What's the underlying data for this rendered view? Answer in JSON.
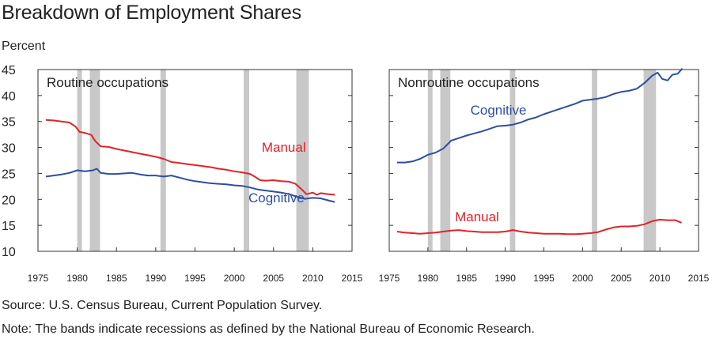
{
  "title": "Breakdown of Employment Shares",
  "y_unit": "Percent",
  "source": "Source: U.S. Census Bureau, Current Population Survey.",
  "note": "Note: The bands indicate recessions as defined by the National Bureau of Economic Research.",
  "colors": {
    "cognitive": "#2e4ea3",
    "manual": "#e0232a",
    "recession": "#c8c8c8"
  },
  "chart_data": [
    {
      "type": "line",
      "title": "Routine occupations",
      "xlim": [
        1975,
        2015
      ],
      "ylim": [
        10,
        45
      ],
      "x_ticks": [
        1975,
        1980,
        1985,
        1990,
        1995,
        2000,
        2005,
        2010,
        2015
      ],
      "y_ticks": [
        10,
        15,
        20,
        25,
        30,
        35,
        40,
        45
      ],
      "recessions": [
        [
          1980.0,
          1980.6
        ],
        [
          1981.6,
          1982.9
        ],
        [
          1990.6,
          1991.3
        ],
        [
          2001.2,
          2001.9
        ],
        [
          2007.9,
          2009.5
        ]
      ],
      "series": [
        {
          "name": "Manual",
          "color": "#e0232a",
          "points": [
            [
              1976,
              35.3
            ],
            [
              1977,
              35.2
            ],
            [
              1978,
              35.0
            ],
            [
              1979,
              34.8
            ],
            [
              1979.8,
              34.0
            ],
            [
              1980.3,
              33.0
            ],
            [
              1981,
              32.8
            ],
            [
              1981.8,
              32.4
            ],
            [
              1982.3,
              31.2
            ],
            [
              1983,
              30.2
            ],
            [
              1984,
              30.1
            ],
            [
              1985,
              29.7
            ],
            [
              1986,
              29.4
            ],
            [
              1987,
              29.1
            ],
            [
              1988,
              28.8
            ],
            [
              1989,
              28.5
            ],
            [
              1990,
              28.2
            ],
            [
              1991,
              27.8
            ],
            [
              1992,
              27.2
            ],
            [
              1993,
              27.0
            ],
            [
              1994,
              26.8
            ],
            [
              1995,
              26.6
            ],
            [
              1996,
              26.4
            ],
            [
              1997,
              26.2
            ],
            [
              1998,
              25.9
            ],
            [
              1999,
              25.7
            ],
            [
              2000,
              25.4
            ],
            [
              2001,
              25.2
            ],
            [
              2002,
              24.9
            ],
            [
              2002.6,
              24.4
            ],
            [
              2003.3,
              23.7
            ],
            [
              2004,
              23.6
            ],
            [
              2005,
              23.7
            ],
            [
              2006,
              23.5
            ],
            [
              2007,
              23.4
            ],
            [
              2007.8,
              23.0
            ],
            [
              2008.6,
              21.9
            ],
            [
              2009.2,
              21.0
            ],
            [
              2010,
              21.3
            ],
            [
              2010.5,
              20.9
            ],
            [
              2011,
              21.2
            ],
            [
              2012,
              21.0
            ],
            [
              2012.8,
              20.9
            ]
          ]
        },
        {
          "name": "Cognitive",
          "color": "#2e4ea3",
          "points": [
            [
              1976,
              24.4
            ],
            [
              1977,
              24.6
            ],
            [
              1978,
              24.8
            ],
            [
              1979,
              25.1
            ],
            [
              1980,
              25.6
            ],
            [
              1981,
              25.4
            ],
            [
              1982,
              25.6
            ],
            [
              1982.5,
              25.9
            ],
            [
              1983,
              25.1
            ],
            [
              1984,
              24.9
            ],
            [
              1985,
              24.9
            ],
            [
              1986,
              25.0
            ],
            [
              1987,
              25.1
            ],
            [
              1988,
              24.8
            ],
            [
              1989,
              24.6
            ],
            [
              1990,
              24.6
            ],
            [
              1991,
              24.4
            ],
            [
              1992,
              24.6
            ],
            [
              1993,
              24.2
            ],
            [
              1994,
              23.8
            ],
            [
              1995,
              23.5
            ],
            [
              1996,
              23.3
            ],
            [
              1997,
              23.1
            ],
            [
              1998,
              23.0
            ],
            [
              1999,
              22.9
            ],
            [
              2000,
              22.7
            ],
            [
              2001,
              22.6
            ],
            [
              2002,
              22.3
            ],
            [
              2003,
              21.9
            ],
            [
              2004,
              21.7
            ],
            [
              2005,
              21.5
            ],
            [
              2006,
              21.3
            ],
            [
              2007,
              21.0
            ],
            [
              2008,
              20.5
            ],
            [
              2009,
              20.1
            ],
            [
              2010,
              20.3
            ],
            [
              2011,
              20.2
            ],
            [
              2012,
              19.8
            ],
            [
              2012.8,
              19.5
            ]
          ]
        }
      ],
      "labels": [
        {
          "text": "Manual",
          "series": "Manual",
          "x": 2003.5,
          "y": 29.2
        },
        {
          "text": "Cognitive",
          "series": "Cognitive",
          "x": 2001.8,
          "y": 19.4
        }
      ]
    },
    {
      "type": "line",
      "title": "Nonroutine occupations",
      "xlim": [
        1975,
        2015
      ],
      "ylim": [
        10,
        45
      ],
      "x_ticks": [
        1975,
        1980,
        1985,
        1990,
        1995,
        2000,
        2005,
        2010,
        2015
      ],
      "y_ticks": [
        10,
        15,
        20,
        25,
        30,
        35,
        40,
        45
      ],
      "recessions": [
        [
          1980.0,
          1980.6
        ],
        [
          1981.6,
          1982.9
        ],
        [
          1990.6,
          1991.3
        ],
        [
          2001.2,
          2001.9
        ],
        [
          2007.9,
          2009.5
        ]
      ],
      "series": [
        {
          "name": "Cognitive",
          "color": "#2e4ea3",
          "points": [
            [
              1976,
              27.1
            ],
            [
              1977,
              27.1
            ],
            [
              1978,
              27.3
            ],
            [
              1979,
              27.8
            ],
            [
              1980,
              28.6
            ],
            [
              1981,
              29.0
            ],
            [
              1982,
              29.8
            ],
            [
              1983,
              31.3
            ],
            [
              1984,
              31.8
            ],
            [
              1985,
              32.3
            ],
            [
              1986,
              32.7
            ],
            [
              1987,
              33.1
            ],
            [
              1988,
              33.6
            ],
            [
              1989,
              34.1
            ],
            [
              1990,
              34.2
            ],
            [
              1991,
              34.4
            ],
            [
              1992,
              34.8
            ],
            [
              1993,
              35.4
            ],
            [
              1994,
              35.8
            ],
            [
              1995,
              36.4
            ],
            [
              1996,
              36.9
            ],
            [
              1997,
              37.4
            ],
            [
              1998,
              37.9
            ],
            [
              1999,
              38.4
            ],
            [
              2000,
              39.0
            ],
            [
              2001,
              39.2
            ],
            [
              2002,
              39.4
            ],
            [
              2003,
              39.7
            ],
            [
              2004,
              40.3
            ],
            [
              2005,
              40.7
            ],
            [
              2006,
              40.9
            ],
            [
              2007,
              41.3
            ],
            [
              2008,
              42.4
            ],
            [
              2009,
              43.8
            ],
            [
              2009.7,
              44.4
            ],
            [
              2010.3,
              43.2
            ],
            [
              2011,
              42.9
            ],
            [
              2011.6,
              44.0
            ],
            [
              2012.3,
              44.2
            ],
            [
              2012.9,
              45.2
            ]
          ]
        },
        {
          "name": "Manual",
          "color": "#e0232a",
          "points": [
            [
              1976,
              13.8
            ],
            [
              1977,
              13.6
            ],
            [
              1978,
              13.5
            ],
            [
              1979,
              13.4
            ],
            [
              1980,
              13.5
            ],
            [
              1981,
              13.6
            ],
            [
              1982,
              13.8
            ],
            [
              1983,
              14.0
            ],
            [
              1984,
              14.1
            ],
            [
              1985,
              13.9
            ],
            [
              1986,
              13.8
            ],
            [
              1987,
              13.7
            ],
            [
              1988,
              13.7
            ],
            [
              1989,
              13.7
            ],
            [
              1990,
              13.8
            ],
            [
              1991,
              14.1
            ],
            [
              1992,
              13.8
            ],
            [
              1993,
              13.6
            ],
            [
              1994,
              13.5
            ],
            [
              1995,
              13.4
            ],
            [
              1996,
              13.4
            ],
            [
              1997,
              13.4
            ],
            [
              1998,
              13.3
            ],
            [
              1999,
              13.3
            ],
            [
              2000,
              13.4
            ],
            [
              2001,
              13.5
            ],
            [
              2002,
              13.7
            ],
            [
              2003,
              14.2
            ],
            [
              2004,
              14.6
            ],
            [
              2005,
              14.8
            ],
            [
              2006,
              14.8
            ],
            [
              2007,
              14.9
            ],
            [
              2008,
              15.2
            ],
            [
              2009,
              15.8
            ],
            [
              2010,
              16.1
            ],
            [
              2011,
              16.0
            ],
            [
              2012,
              16.0
            ],
            [
              2012.8,
              15.5
            ]
          ]
        }
      ],
      "labels": [
        {
          "text": "Cognitive",
          "series": "Cognitive",
          "x": 1985.5,
          "y": 36.3
        },
        {
          "text": "Manual",
          "series": "Manual",
          "x": 1983.5,
          "y": 15.8
        }
      ]
    }
  ]
}
